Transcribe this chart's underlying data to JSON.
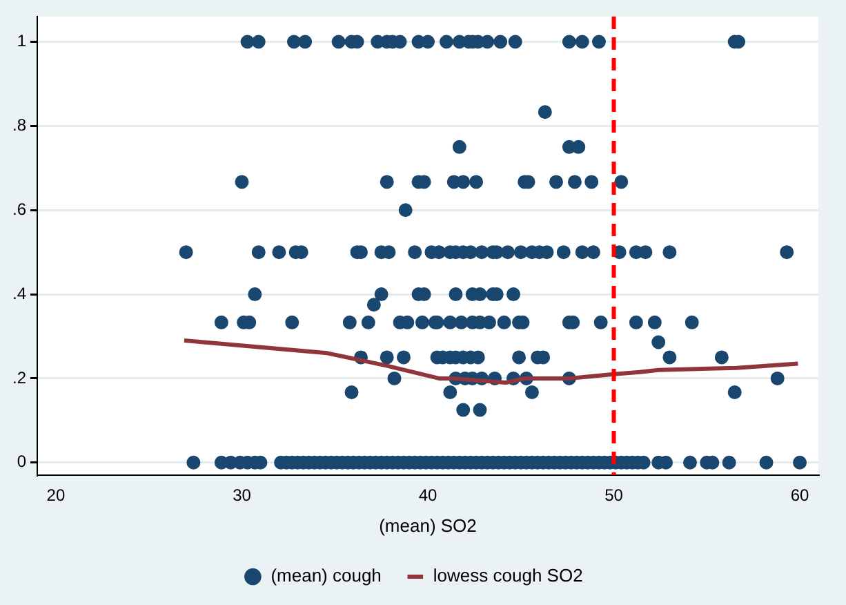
{
  "chart_data": {
    "type": "scatter",
    "xlabel": "(mean) SO2",
    "xlim": [
      19,
      61
    ],
    "ylim": [
      -0.03,
      1.06
    ],
    "xticks": [
      20,
      30,
      40,
      50,
      60
    ],
    "yticks": [
      {
        "value": 0,
        "label": "0"
      },
      {
        "value": 0.2,
        "label": ".2"
      },
      {
        "value": 0.4,
        "label": ".4"
      },
      {
        "value": 0.6,
        "label": ".6"
      },
      {
        "value": 0.8,
        "label": ".8"
      },
      {
        "value": 1,
        "label": "1"
      }
    ],
    "grid": "y",
    "legend": "bottom",
    "ref_lines": [
      {
        "axis": "x",
        "value": 50,
        "color": "#ff0000",
        "line_style": "dashed"
      }
    ],
    "series": [
      {
        "name": "(mean) cough",
        "type": "scatter",
        "marker": "circle",
        "color": "#1a476f",
        "x": [
          30.3,
          30.9,
          32.8,
          33.4,
          35.2,
          35.9,
          36.2,
          37.3,
          37.8,
          38.1,
          38.5,
          39.5,
          40.0,
          41.0,
          41.7,
          42.2,
          42.4,
          42.7,
          43.2,
          43.9,
          44.7,
          47.6,
          48.3,
          49.2,
          56.5,
          56.7,
          46.3,
          41.7,
          47.6,
          48.1,
          30.0,
          37.8,
          39.5,
          39.8,
          41.4,
          41.9,
          42.6,
          45.2,
          45.4,
          46.9,
          47.9,
          48.8,
          50.4,
          38.8,
          27.0,
          30.9,
          32.0,
          32.9,
          33.2,
          36.2,
          36.4,
          37.5,
          37.9,
          39.3,
          40.2,
          40.6,
          41.2,
          41.5,
          41.9,
          42.3,
          42.9,
          43.5,
          43.7,
          44.3,
          45.0,
          45.6,
          46.0,
          46.4,
          47.3,
          48.3,
          48.9,
          50.3,
          51.2,
          51.7,
          53.0,
          59.3,
          30.7,
          37.5,
          39.5,
          39.8,
          41.5,
          42.4,
          42.8,
          43.5,
          43.7,
          44.6,
          37.1,
          28.9,
          30.1,
          30.4,
          32.7,
          35.8,
          36.8,
          38.5,
          38.9,
          39.7,
          40.4,
          40.5,
          41.2,
          41.8,
          42.4,
          42.8,
          43.3,
          44.1,
          44.9,
          45.1,
          47.6,
          47.8,
          49.3,
          51.2,
          52.2,
          54.2,
          52.4,
          36.4,
          37.8,
          38.7,
          40.5,
          40.8,
          41.2,
          41.5,
          41.9,
          42.3,
          42.7,
          44.9,
          45.9,
          46.2,
          53.0,
          55.8,
          38.2,
          41.5,
          42.0,
          42.4,
          42.9,
          43.6,
          44.6,
          45.3,
          47.6,
          58.8,
          35.9,
          41.2,
          45.6,
          56.5,
          41.9,
          42.8,
          27.4,
          28.9,
          29.4,
          29.9,
          30.3,
          30.7,
          31.0,
          32.1,
          32.4,
          32.7,
          33.0,
          33.3,
          33.6,
          33.9,
          34.2,
          34.5,
          34.8,
          35.1,
          35.4,
          35.7,
          36.0,
          36.3,
          36.6,
          36.9,
          37.2,
          37.5,
          37.8,
          38.1,
          38.4,
          38.7,
          39.0,
          39.3,
          39.6,
          39.9,
          40.2,
          40.5,
          40.8,
          41.1,
          41.4,
          41.7,
          42.0,
          42.3,
          42.6,
          42.9,
          43.2,
          43.5,
          43.8,
          44.1,
          44.4,
          44.7,
          45.0,
          45.3,
          45.6,
          45.9,
          46.2,
          46.5,
          46.8,
          47.1,
          47.4,
          47.7,
          48.0,
          48.3,
          48.6,
          48.9,
          49.2,
          49.5,
          49.8,
          50.1,
          50.4,
          50.7,
          51.0,
          51.3,
          51.6,
          52.4,
          52.8,
          54.1,
          55.0,
          55.3,
          56.2,
          58.2,
          60.0
        ],
        "values": [
          1,
          1,
          1,
          1,
          1,
          1,
          1,
          1,
          1,
          1,
          1,
          1,
          1,
          1,
          1,
          1,
          1,
          1,
          1,
          1,
          1,
          1,
          1,
          1,
          1,
          1,
          0.833,
          0.75,
          0.75,
          0.75,
          0.667,
          0.667,
          0.667,
          0.667,
          0.667,
          0.667,
          0.667,
          0.667,
          0.667,
          0.667,
          0.667,
          0.667,
          0.667,
          0.6,
          0.5,
          0.5,
          0.5,
          0.5,
          0.5,
          0.5,
          0.5,
          0.5,
          0.5,
          0.5,
          0.5,
          0.5,
          0.5,
          0.5,
          0.5,
          0.5,
          0.5,
          0.5,
          0.5,
          0.5,
          0.5,
          0.5,
          0.5,
          0.5,
          0.5,
          0.5,
          0.5,
          0.5,
          0.5,
          0.5,
          0.5,
          0.5,
          0.4,
          0.4,
          0.4,
          0.4,
          0.4,
          0.4,
          0.4,
          0.4,
          0.4,
          0.4,
          0.375,
          0.333,
          0.333,
          0.333,
          0.333,
          0.333,
          0.333,
          0.333,
          0.333,
          0.333,
          0.333,
          0.333,
          0.333,
          0.333,
          0.333,
          0.333,
          0.333,
          0.333,
          0.333,
          0.333,
          0.333,
          0.333,
          0.333,
          0.333,
          0.333,
          0.333,
          0.286,
          0.25,
          0.25,
          0.25,
          0.25,
          0.25,
          0.25,
          0.25,
          0.25,
          0.25,
          0.25,
          0.25,
          0.25,
          0.25,
          0.25,
          0.25,
          0.2,
          0.2,
          0.2,
          0.2,
          0.2,
          0.2,
          0.2,
          0.2,
          0.2,
          0.2,
          0.167,
          0.167,
          0.167,
          0.167,
          0.125,
          0.125,
          0,
          0,
          0,
          0,
          0,
          0,
          0,
          0,
          0,
          0,
          0,
          0,
          0,
          0,
          0,
          0,
          0,
          0,
          0,
          0,
          0,
          0,
          0,
          0,
          0,
          0,
          0,
          0,
          0,
          0,
          0,
          0,
          0,
          0,
          0,
          0,
          0,
          0,
          0,
          0,
          0,
          0,
          0,
          0,
          0,
          0,
          0,
          0,
          0,
          0,
          0,
          0,
          0,
          0,
          0,
          0,
          0,
          0,
          0,
          0,
          0,
          0,
          0,
          0,
          0,
          0,
          0,
          0,
          0,
          0,
          0,
          0,
          0,
          0,
          0,
          0,
          0,
          0,
          0,
          0,
          0
        ]
      },
      {
        "name": "lowess cough SO2",
        "type": "line",
        "marker": "none",
        "color": "#90353b",
        "x": [
          26.9,
          34.6,
          37.8,
          40.6,
          41.4,
          42.4,
          44.2,
          45.2,
          47.6,
          50.0,
          51.4,
          52.4,
          56.6,
          59.9
        ],
        "values": [
          0.29,
          0.26,
          0.23,
          0.2,
          0.2,
          0.196,
          0.19,
          0.2,
          0.2,
          0.21,
          0.215,
          0.22,
          0.225,
          0.235
        ]
      }
    ]
  }
}
